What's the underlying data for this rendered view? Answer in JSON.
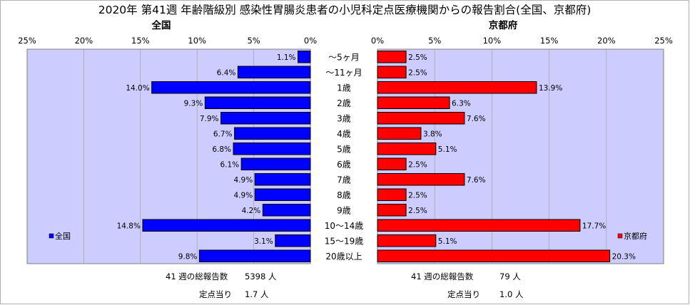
{
  "chart_data": {
    "type": "bar",
    "title": "2020年 第41週 年齢階級別 感染性胃腸炎患者の小児科定点医療機関からの報告割合(全国、京都府)",
    "categories": [
      "～5ヶ月",
      "～11ヶ月",
      "1歳",
      "2歳",
      "3歳",
      "4歳",
      "5歳",
      "6歳",
      "7歳",
      "8歳",
      "9歳",
      "10～14歳",
      "15～19歳",
      "20歳以上"
    ],
    "xlim": [
      0,
      25
    ],
    "x_ticks": [
      "25%",
      "20%",
      "15%",
      "10%",
      "5%",
      "0%"
    ],
    "x_ticks_right": [
      "0%",
      "5%",
      "10%",
      "15%",
      "20%",
      "25%"
    ],
    "grid": true,
    "series": [
      {
        "name": "全国",
        "color": "#0000ff",
        "values": [
          1.1,
          6.4,
          14.0,
          9.3,
          7.9,
          6.7,
          6.8,
          6.1,
          4.9,
          4.9,
          4.2,
          14.8,
          3.1,
          9.8
        ],
        "labels": [
          "1.1%",
          "6.4%",
          "14.0%",
          "9.3%",
          "7.9%",
          "6.7%",
          "6.8%",
          "6.1%",
          "4.9%",
          "4.9%",
          "4.2%",
          "14.8%",
          "3.1%",
          "9.8%"
        ]
      },
      {
        "name": "京都府",
        "color": "#ff0000",
        "values": [
          2.5,
          2.5,
          13.9,
          6.3,
          7.6,
          3.8,
          5.1,
          2.5,
          7.6,
          2.5,
          2.5,
          17.7,
          5.1,
          20.3
        ],
        "labels": [
          "2.5%",
          "2.5%",
          "13.9%",
          "6.3%",
          "7.6%",
          "3.8%",
          "5.1%",
          "2.5%",
          "7.6%",
          "2.5%",
          "2.5%",
          "17.7%",
          "5.1%",
          "20.3%"
        ]
      }
    ],
    "panel_titles": {
      "left": "全国",
      "right": "京都府"
    },
    "legend": {
      "left": "全国",
      "right": "京都府"
    },
    "plot_bg": "#ccccff",
    "footer": {
      "left": {
        "reports_label": "41 週の総報告数",
        "reports_value": "5398 人",
        "per_site_label": "定点当り",
        "per_site_value": "1.7 人"
      },
      "right": {
        "reports_label": "41 週の総報告数",
        "reports_value": "79 人",
        "per_site_label": "定点当り",
        "per_site_value": "1.0 人"
      }
    }
  }
}
